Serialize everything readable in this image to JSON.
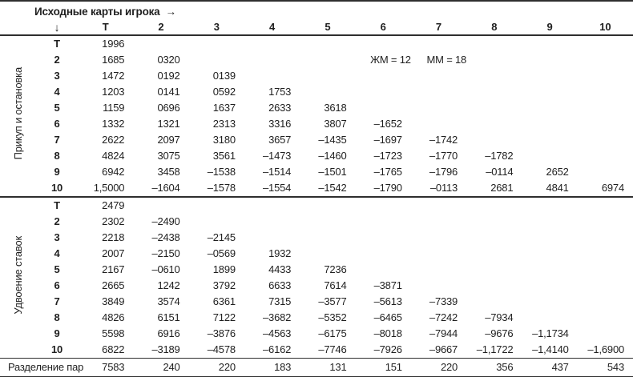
{
  "header": {
    "title": "Исходные карты игрока",
    "right_arrow": "→",
    "down_arrow": "↓",
    "columns": [
      "Т",
      "2",
      "3",
      "4",
      "5",
      "6",
      "7",
      "8",
      "9",
      "10"
    ]
  },
  "sections": [
    {
      "label": "Прикуп и остановка",
      "rows": [
        {
          "label": "Т",
          "values": [
            "1996"
          ]
        },
        {
          "label": "2",
          "values": [
            "1685",
            "0320"
          ]
        },
        {
          "label": "3",
          "values": [
            "1472",
            "0192",
            "0139"
          ]
        },
        {
          "label": "4",
          "values": [
            "1203",
            "0141",
            "0592",
            "1753"
          ]
        },
        {
          "label": "5",
          "values": [
            "1159",
            "0696",
            "1637",
            "2633",
            "3618"
          ]
        },
        {
          "label": "6",
          "values": [
            "1332",
            "1321",
            "2313",
            "3316",
            "3807",
            "–1652"
          ]
        },
        {
          "label": "7",
          "values": [
            "2622",
            "2097",
            "3180",
            "3657",
            "–1435",
            "–1697",
            "–1742"
          ]
        },
        {
          "label": "8",
          "values": [
            "4824",
            "3075",
            "3561",
            "–1473",
            "–1460",
            "–1723",
            "–1770",
            "–1782"
          ]
        },
        {
          "label": "9",
          "values": [
            "6942",
            "3458",
            "–1538",
            "–1514",
            "–1501",
            "–1765",
            "–1796",
            "–0114",
            "2652"
          ]
        },
        {
          "label": "10",
          "values": [
            "1,5000",
            "–1604",
            "–1578",
            "–1554",
            "–1542",
            "–1790",
            "–0113",
            "2681",
            "4841",
            "6974"
          ]
        }
      ],
      "annotations": [
        {
          "text": "ЖМ = 12",
          "row": 1,
          "col": 5
        },
        {
          "text": "ММ = 18",
          "row": 1,
          "col": 6
        }
      ]
    },
    {
      "label": "Удвоение ставок",
      "rows": [
        {
          "label": "Т",
          "values": [
            "2479"
          ]
        },
        {
          "label": "2",
          "values": [
            "2302",
            "–2490"
          ]
        },
        {
          "label": "3",
          "values": [
            "2218",
            "–2438",
            "–2145"
          ]
        },
        {
          "label": "4",
          "values": [
            "2007",
            "–2150",
            "–0569",
            "1932"
          ]
        },
        {
          "label": "5",
          "values": [
            "2167",
            "–0610",
            "1899",
            "4433",
            "7236"
          ]
        },
        {
          "label": "6",
          "values": [
            "2665",
            "1242",
            "3792",
            "6633",
            "7614",
            "–3871"
          ]
        },
        {
          "label": "7",
          "values": [
            "3849",
            "3574",
            "6361",
            "7315",
            "–3577",
            "–5613",
            "–7339"
          ]
        },
        {
          "label": "8",
          "values": [
            "4826",
            "6151",
            "7122",
            "–3682",
            "–5352",
            "–6465",
            "–7242",
            "–7934"
          ]
        },
        {
          "label": "9",
          "values": [
            "5598",
            "6916",
            "–3876",
            "–4563",
            "–6175",
            "–8018",
            "–7944",
            "–9676",
            "–1,1734"
          ]
        },
        {
          "label": "10",
          "values": [
            "6822",
            "–3189",
            "–4578",
            "–6162",
            "–7746",
            "–7926",
            "–9667",
            "–1,1722",
            "–1,4140",
            "–1,6900"
          ]
        }
      ],
      "annotations": []
    }
  ],
  "footer_row": {
    "label": "Разделение пар",
    "values": [
      "7583",
      "240",
      "220",
      "183",
      "131",
      "151",
      "220",
      "356",
      "437",
      "543"
    ]
  },
  "colors": {
    "text": "#1f1f1f",
    "rule": "#2e2e2e",
    "background": "#ffffff"
  }
}
